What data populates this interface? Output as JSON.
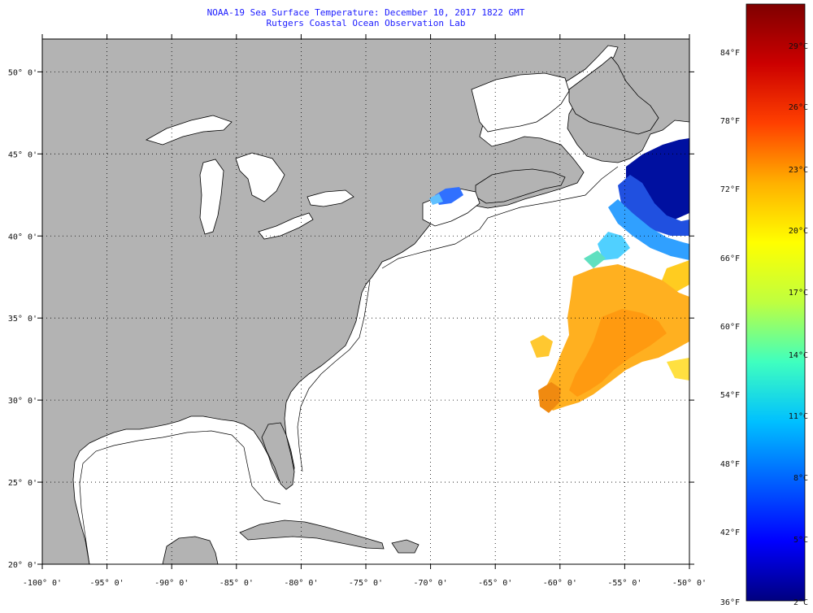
{
  "title": {
    "line1": "NOAA-19 Sea Surface Temperature:  December 10, 2017 1822 GMT",
    "line2": "Rutgers Coastal Ocean Observation Lab"
  },
  "map": {
    "lon_range": [
      -100,
      -50
    ],
    "lat_range": [
      20,
      52
    ],
    "lon_ticks": [
      {
        "v": -100,
        "label": "-100° 0'"
      },
      {
        "v": -95,
        "label": "-95° 0'"
      },
      {
        "v": -90,
        "label": "-90° 0'"
      },
      {
        "v": -85,
        "label": "-85° 0'"
      },
      {
        "v": -80,
        "label": "-80° 0'"
      },
      {
        "v": -75,
        "label": "-75° 0'"
      },
      {
        "v": -70,
        "label": "-70° 0'"
      },
      {
        "v": -65,
        "label": "-65° 0'"
      },
      {
        "v": -60,
        "label": "-60° 0'"
      },
      {
        "v": -55,
        "label": "-55° 0'"
      },
      {
        "v": -50,
        "label": "-50° 0'"
      }
    ],
    "lat_ticks": [
      {
        "v": 50,
        "label": "50° 0'"
      },
      {
        "v": 45,
        "label": "45° 0'"
      },
      {
        "v": 40,
        "label": "40° 0'"
      },
      {
        "v": 35,
        "label": "35° 0'"
      },
      {
        "v": 30,
        "label": "30° 0'"
      },
      {
        "v": 25,
        "label": "25° 0'"
      },
      {
        "v": 20,
        "label": "20° 0'"
      }
    ],
    "land_color": "#b3b3b3",
    "ocean_color": "#ffffff",
    "grid": "dotted"
  },
  "colorbar": {
    "fahrenheit_labels": [
      "84°F",
      "78°F",
      "72°F",
      "66°F",
      "60°F",
      "54°F",
      "48°F",
      "42°F",
      "36°F"
    ],
    "celsius_labels": [
      "29°C",
      "26°C",
      "23°C",
      "20°C",
      "17°C",
      "14°C",
      "11°C",
      "8°C",
      "5°C",
      "2°C"
    ],
    "gradient": [
      "#00007f",
      "#0000ff",
      "#0060ff",
      "#00c0ff",
      "#3fffbf",
      "#bfff3f",
      "#ffff00",
      "#ffb000",
      "#ff4000",
      "#cc0000",
      "#7f0000"
    ]
  }
}
